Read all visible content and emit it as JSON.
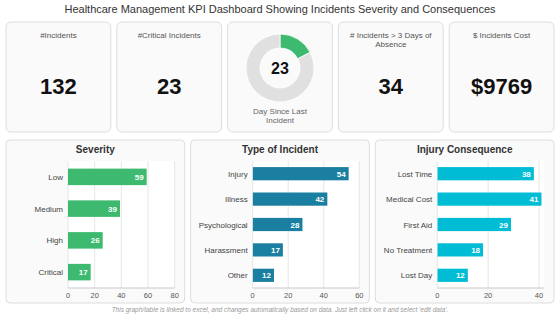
{
  "chart_data": [
    {
      "type": "kpi",
      "title": "Healthcare Management KPI Dashboard Showing Incidents Severity and Consequences",
      "categories": [
        "#Incidents",
        "#Critical Incidents",
        null,
        "# Incidents > 3 Days of\nAbsence",
        "$ Incidents Cost"
      ],
      "values": [
        132,
        23,
        23,
        34,
        9769
      ],
      "value_labels": [
        "132",
        "23",
        "23",
        "34",
        "$9769"
      ],
      "annotations": [
        "This graph/table is linked to excel, and changes automatically based on data. Just left click on it and select 'edit data'."
      ]
    },
    {
      "type": "pie",
      "values": [
        0.174,
        0.826
      ],
      "colors": [
        "#3dba6f",
        "#e0e0e0"
      ],
      "annotations": [
        "Day Since Last\nIncident"
      ]
    },
    {
      "type": "bar",
      "orientation": "horizontal",
      "title": "Severity",
      "categories": [
        "Low",
        "Medium",
        "High",
        "Critical"
      ],
      "values": [
        59,
        39,
        26,
        17
      ],
      "color": "#3dba6f",
      "xlim": [
        0,
        80
      ],
      "xticks": [
        0,
        20,
        40,
        60,
        80
      ],
      "grid": true,
      "data_labels": true
    },
    {
      "type": "bar",
      "orientation": "horizontal",
      "title": "Type of Incident",
      "categories": [
        "Injury",
        "Illness",
        "Psychological",
        "Harassment",
        "Other"
      ],
      "values": [
        54,
        42,
        28,
        17,
        12
      ],
      "color": "#1a7fa0",
      "xlim": [
        0,
        60
      ],
      "xticks": [
        0,
        20,
        40,
        60
      ],
      "grid": true,
      "data_labels": true
    },
    {
      "type": "bar",
      "orientation": "horizontal",
      "title": "Injury Consequence",
      "categories": [
        "Lost Time",
        "Medical Cost",
        "First Aid",
        "No Treatment",
        "Lost Day"
      ],
      "values": [
        38,
        41,
        29,
        18,
        12
      ],
      "color": "#00bcd4",
      "xlim": [
        0,
        42
      ],
      "xticks": [
        0,
        20,
        40
      ],
      "grid": true,
      "data_labels": true
    }
  ]
}
